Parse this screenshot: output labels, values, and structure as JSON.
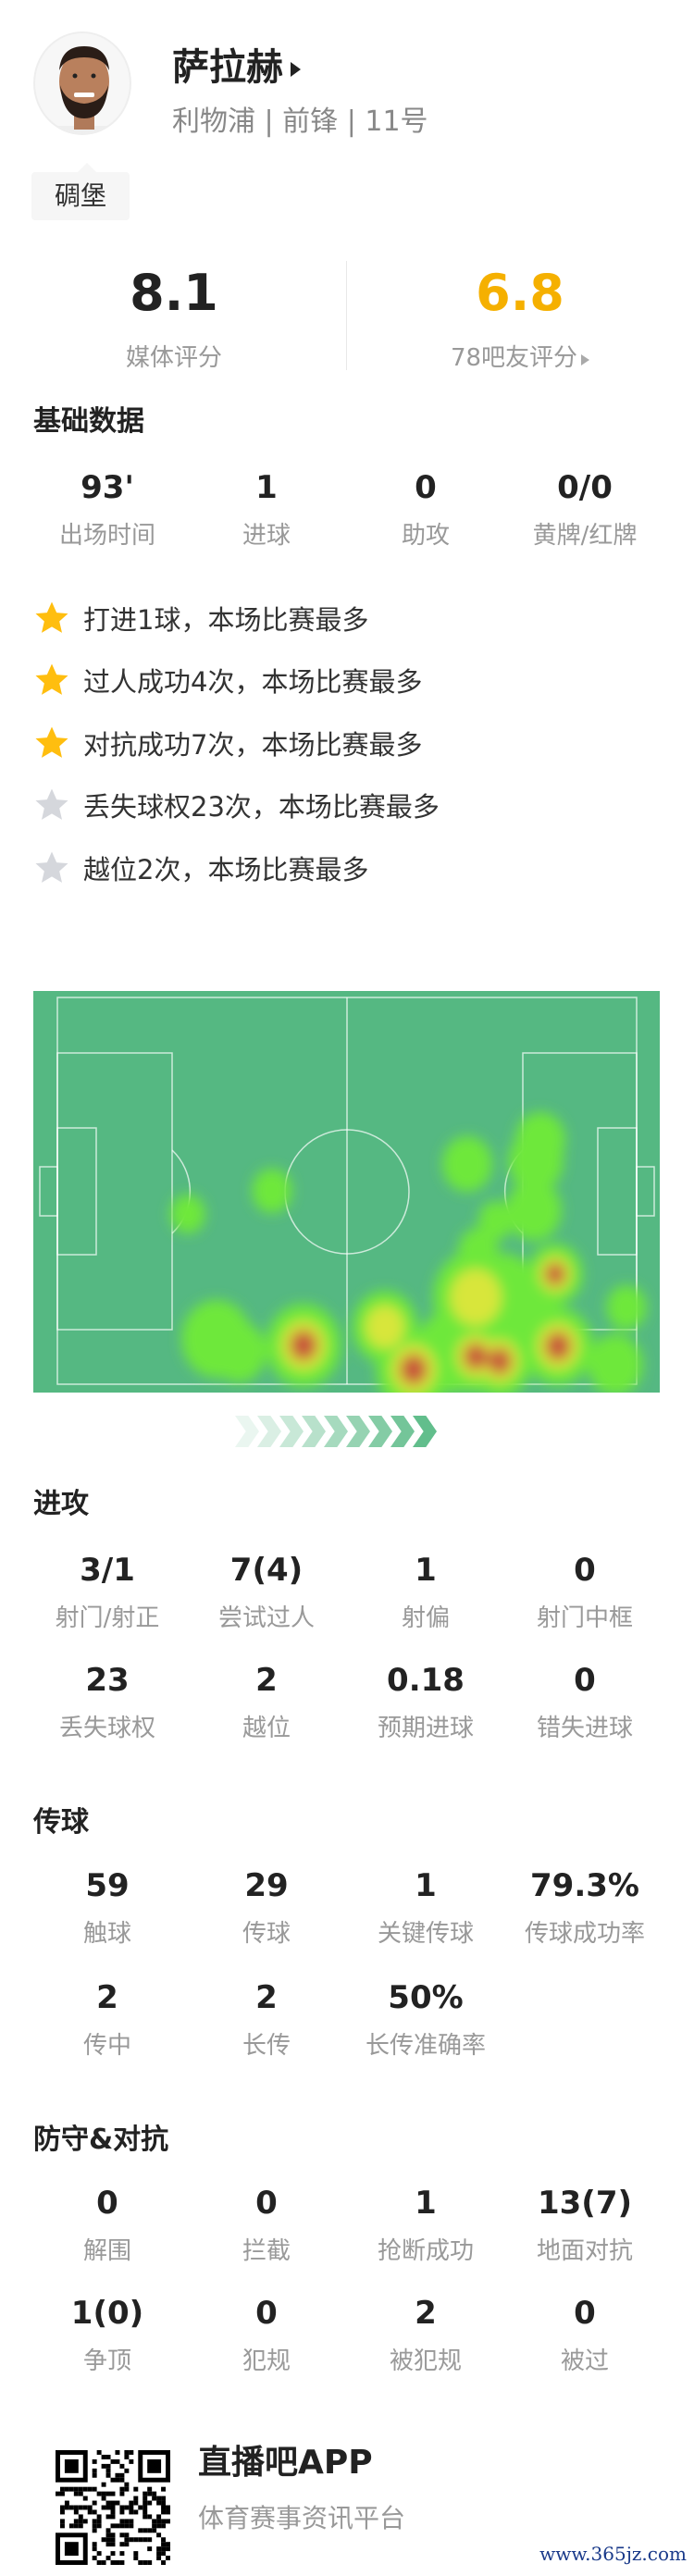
{
  "player": {
    "name": "萨拉赫",
    "subtitle": "利物浦 | 前锋 | 11号",
    "tag": "碉堡"
  },
  "ratings": {
    "media_value": "8.1",
    "media_label": "媒体评分",
    "fan_value": "6.8",
    "fan_label": "78吧友评分",
    "fan_color": "#F5B000"
  },
  "basic": {
    "title": "基础数据",
    "items": [
      {
        "value": "93'",
        "label": "出场时间"
      },
      {
        "value": "1",
        "label": "进球"
      },
      {
        "value": "0",
        "label": "助攻"
      },
      {
        "value": "0/0",
        "label": "黄牌/红牌"
      }
    ]
  },
  "highlights": [
    {
      "text": "打进1球，本场比赛最多",
      "star": "gold"
    },
    {
      "text": "过人成功4次，本场比赛最多",
      "star": "gold"
    },
    {
      "text": "对抗成功7次，本场比赛最多",
      "star": "gold"
    },
    {
      "text": "丢失球权23次，本场比赛最多",
      "star": "gray"
    },
    {
      "text": "越位2次，本场比赛最多",
      "star": "gray"
    }
  ],
  "colors": {
    "pitch": "#55B882",
    "star_gold": "#FFBE0F",
    "star_gray": "#D5D7DC"
  },
  "attack": {
    "title": "进攻",
    "rows": [
      [
        {
          "value": "3/1",
          "label": "射门/射正"
        },
        {
          "value": "7(4)",
          "label": "尝试过人"
        },
        {
          "value": "1",
          "label": "射偏"
        },
        {
          "value": "0",
          "label": "射门中框"
        }
      ],
      [
        {
          "value": "23",
          "label": "丢失球权"
        },
        {
          "value": "2",
          "label": "越位"
        },
        {
          "value": "0.18",
          "label": "预期进球"
        },
        {
          "value": "0",
          "label": "错失进球"
        }
      ]
    ]
  },
  "passing": {
    "title": "传球",
    "rows": [
      [
        {
          "value": "59",
          "label": "触球"
        },
        {
          "value": "29",
          "label": "传球"
        },
        {
          "value": "1",
          "label": "关键传球"
        },
        {
          "value": "79.3%",
          "label": "传球成功率"
        }
      ],
      [
        {
          "value": "2",
          "label": "传中"
        },
        {
          "value": "2",
          "label": "长传"
        },
        {
          "value": "50%",
          "label": "长传准确率"
        }
      ]
    ]
  },
  "defense": {
    "title": "防守&对抗",
    "rows": [
      [
        {
          "value": "0",
          "label": "解围"
        },
        {
          "value": "0",
          "label": "拦截"
        },
        {
          "value": "1",
          "label": "抢断成功"
        },
        {
          "value": "13(7)",
          "label": "地面对抗"
        }
      ],
      [
        {
          "value": "1(0)",
          "label": "争顶"
        },
        {
          "value": "0",
          "label": "犯规"
        },
        {
          "value": "2",
          "label": "被犯规"
        },
        {
          "value": "0",
          "label": "被过"
        }
      ]
    ]
  },
  "footer": {
    "app": "直播吧APP",
    "slogan": "体育赛事资讯平台",
    "watermark": "www.365jz.com"
  }
}
